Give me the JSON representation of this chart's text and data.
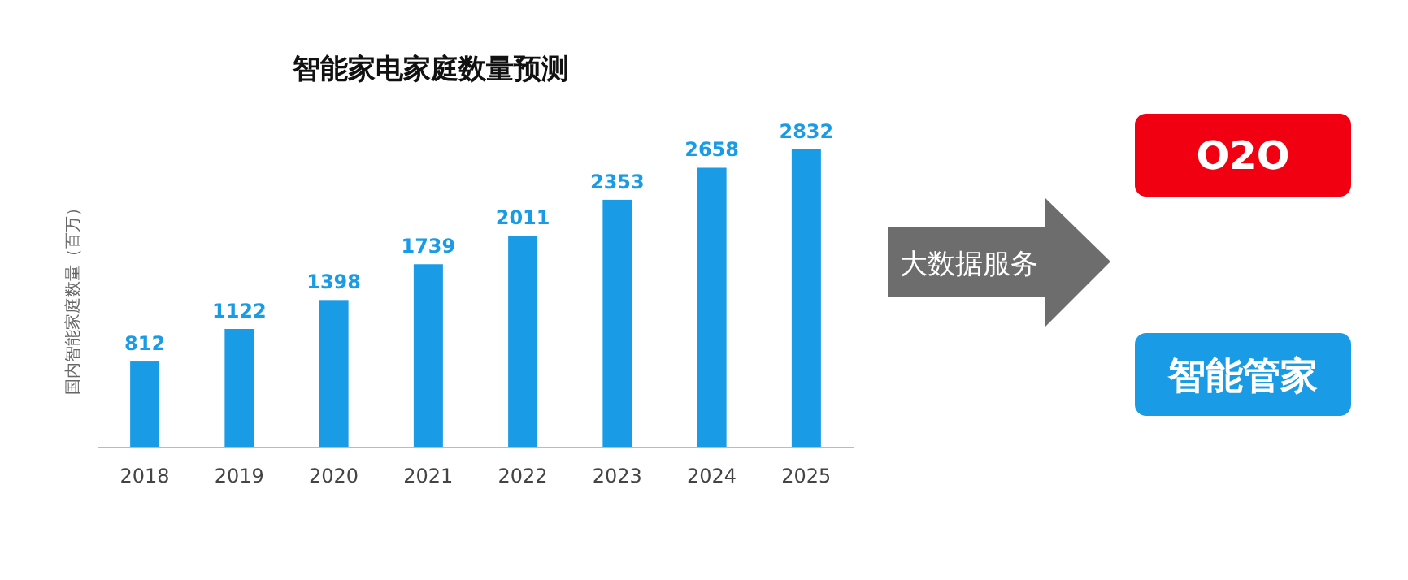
{
  "chart_data": [
    {
      "type": "bar",
      "title": "智能家电家庭数量预测",
      "ylabel": "国内智能家庭数量（百万）",
      "categories": [
        "2018",
        "2019",
        "2020",
        "2021",
        "2022",
        "2023",
        "2024",
        "2025"
      ],
      "values": [
        812,
        1122,
        1398,
        1739,
        2011,
        2353,
        2658,
        2832
      ],
      "color": "#1a9be6",
      "data_labels": true
    },
    {
      "type": "other",
      "annotations": [
        "大数据服务",
        "O2O",
        "智能管家"
      ]
    }
  ]
}
